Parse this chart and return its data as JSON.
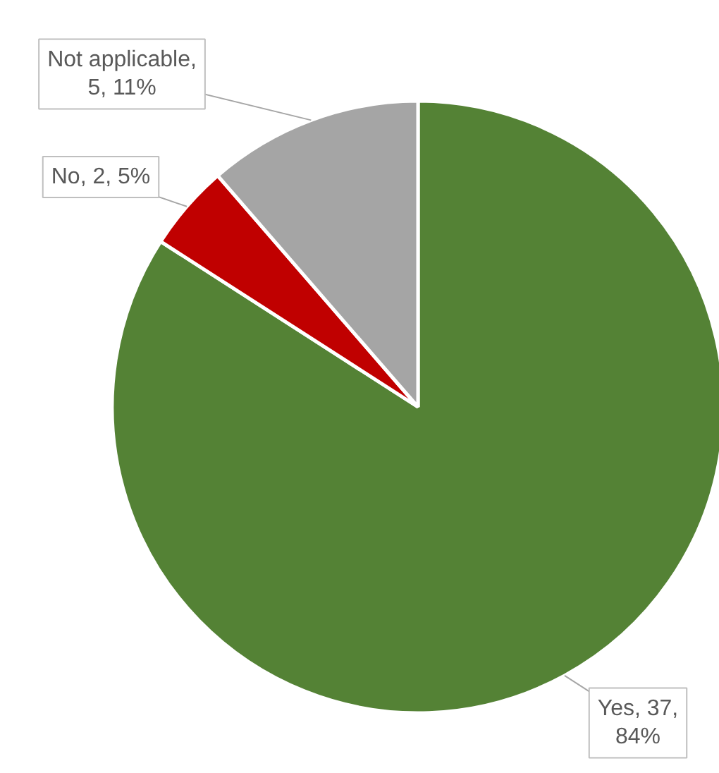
{
  "chart_data": {
    "type": "pie",
    "categories": [
      "Yes",
      "No",
      "Not applicable"
    ],
    "values": [
      37,
      2,
      5
    ],
    "colors": [
      "#548235",
      "#c00000",
      "#a5a5a5"
    ],
    "value_labels": [
      ", 37, 84%",
      ", 2, 5%",
      ", 5, 11%"
    ]
  }
}
